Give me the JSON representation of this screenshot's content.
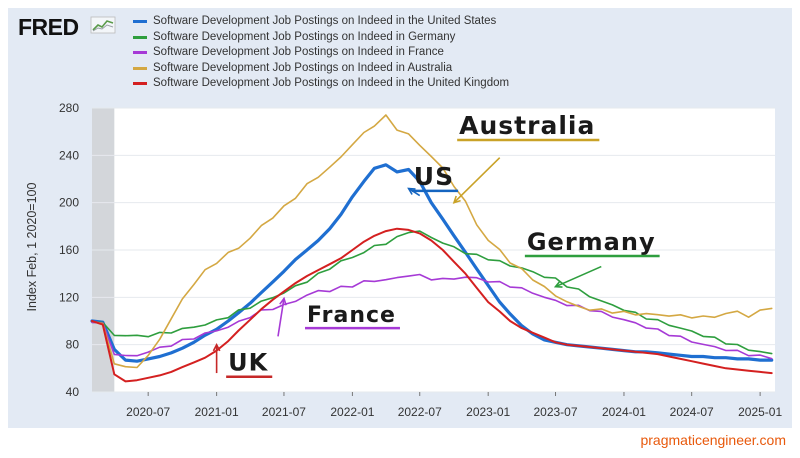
{
  "brand": {
    "logo_text": "FRED",
    "logo_icon": "fred-chart-icon"
  },
  "footer": {
    "source_text": "pragmaticengineer.com",
    "source_color": "#e8590c"
  },
  "colors": {
    "background_frame": "#e3eaf4",
    "plot_bg": "#ffffff",
    "recession_band": "#d3d6da",
    "annotation_united_states": "#1565c0",
    "annotation_australia": "#c9a227",
    "annotation_germany": "#2e9e3e",
    "annotation_france": "#a63ad6",
    "annotation_uk": "#c62828"
  },
  "annotations": [
    {
      "text": "Australia",
      "series": "Australia",
      "color": "#c9a227",
      "x": "2022-10-15",
      "y": 258
    },
    {
      "text": "US",
      "series": "United States",
      "color": "#1565c0",
      "x": "2022-06-15",
      "y": 215
    },
    {
      "text": "Germany",
      "series": "Germany",
      "color": "#2e9e3e",
      "x": "2023-04-15",
      "y": 160
    },
    {
      "text": "France",
      "series": "France",
      "color": "#a63ad6",
      "x": "2021-09-01",
      "y": 99
    },
    {
      "text": "UK",
      "series": "United Kingdom",
      "color": "#c62828",
      "x": "2021-02-01",
      "y": 58
    }
  ],
  "chart_data": {
    "type": "line",
    "title": "",
    "xlabel": "",
    "ylabel": "Index Feb, 1 2020=100",
    "ylim": [
      40,
      280
    ],
    "xlim": [
      "2020-02-01",
      "2025-02-10"
    ],
    "y_ticks": [
      40,
      80,
      120,
      160,
      200,
      240,
      280
    ],
    "x_ticks": [
      "2020-07",
      "2021-01",
      "2021-07",
      "2022-01",
      "2022-07",
      "2023-01",
      "2023-07",
      "2024-01",
      "2024-07",
      "2025-01"
    ],
    "grid": true,
    "legend": "top-left",
    "recession_band": {
      "start": "2020-02-01",
      "end": "2020-04-01"
    },
    "x": [
      "2020-02-01",
      "2020-03-01",
      "2020-04-01",
      "2020-05-01",
      "2020-06-01",
      "2020-07-01",
      "2020-08-01",
      "2020-09-01",
      "2020-10-01",
      "2020-11-01",
      "2020-12-01",
      "2021-01-01",
      "2021-02-01",
      "2021-03-01",
      "2021-04-01",
      "2021-05-01",
      "2021-06-01",
      "2021-07-01",
      "2021-08-01",
      "2021-09-01",
      "2021-10-01",
      "2021-11-01",
      "2021-12-01",
      "2022-01-01",
      "2022-02-01",
      "2022-03-01",
      "2022-04-01",
      "2022-05-01",
      "2022-06-01",
      "2022-07-01",
      "2022-08-01",
      "2022-09-01",
      "2022-10-01",
      "2022-11-01",
      "2022-12-01",
      "2023-01-01",
      "2023-02-01",
      "2023-03-01",
      "2023-04-01",
      "2023-05-01",
      "2023-06-01",
      "2023-07-01",
      "2023-08-01",
      "2023-09-01",
      "2023-10-01",
      "2023-11-01",
      "2023-12-01",
      "2024-01-01",
      "2024-02-01",
      "2024-03-01",
      "2024-04-01",
      "2024-05-01",
      "2024-06-01",
      "2024-07-01",
      "2024-08-01",
      "2024-09-01",
      "2024-10-01",
      "2024-11-01",
      "2024-12-01",
      "2025-01-01",
      "2025-02-01"
    ],
    "series": [
      {
        "name": "Software Development Job Postings on Indeed in the United States",
        "color": "#1f6fd1",
        "width": 3.2,
        "values": [
          100,
          99,
          76,
          67,
          66,
          68,
          70,
          73,
          77,
          82,
          88,
          93,
          100,
          107,
          115,
          124,
          133,
          142,
          152,
          160,
          168,
          178,
          190,
          205,
          218,
          229,
          232,
          226,
          228,
          218,
          200,
          186,
          172,
          158,
          144,
          130,
          116,
          106,
          96,
          89,
          84,
          82,
          80,
          79,
          78,
          77,
          76,
          75,
          74,
          74,
          73,
          72,
          71,
          70,
          70,
          69,
          69,
          68,
          68,
          67,
          67
        ]
      },
      {
        "name": "Software Development Job Postings on Indeed in Germany",
        "color": "#2e9e3e",
        "width": 1.6,
        "values": [
          100,
          98,
          88,
          88,
          87,
          88,
          89,
          91,
          93,
          95,
          97,
          100,
          104,
          108,
          112,
          116,
          120,
          124,
          129,
          134,
          139,
          145,
          150,
          154,
          158,
          163,
          166,
          170,
          176,
          175,
          171,
          166,
          162,
          158,
          155,
          153,
          150,
          147,
          145,
          141,
          138,
          135,
          130,
          126,
          121,
          117,
          113,
          110,
          106,
          103,
          100,
          97,
          94,
          91,
          88,
          85,
          82,
          79,
          76,
          74,
          72
        ]
      },
      {
        "name": "Software Development Job Postings on Indeed in France",
        "color": "#a63ad6",
        "width": 1.6,
        "values": [
          100,
          97,
          73,
          70,
          71,
          74,
          77,
          80,
          83,
          86,
          89,
          92,
          95,
          99,
          104,
          108,
          111,
          113,
          117,
          122,
          125,
          126,
          128,
          130,
          133,
          134,
          135,
          136,
          139,
          138,
          136,
          135,
          136,
          137,
          136,
          134,
          132,
          130,
          127,
          124,
          120,
          117,
          114,
          112,
          110,
          107,
          104,
          101,
          98,
          95,
          92,
          89,
          86,
          83,
          80,
          78,
          76,
          74,
          72,
          70,
          69
        ]
      },
      {
        "name": "Software Development Job Postings on Indeed in Australia",
        "color": "#d4a843",
        "width": 1.6,
        "values": [
          100,
          97,
          65,
          60,
          62,
          70,
          85,
          102,
          118,
          132,
          142,
          150,
          157,
          162,
          170,
          180,
          188,
          196,
          205,
          215,
          222,
          230,
          238,
          250,
          258,
          266,
          273,
          262,
          258,
          248,
          240,
          228,
          215,
          200,
          182,
          168,
          160,
          150,
          143,
          136,
          128,
          122,
          116,
          112,
          110,
          109,
          108,
          107,
          106,
          106,
          105,
          105,
          104,
          104,
          103,
          104,
          106,
          108,
          104,
          108,
          112
        ]
      },
      {
        "name": "Software Development Job Postings on Indeed in the United Kingdom",
        "color": "#d42020",
        "width": 2.0,
        "values": [
          100,
          97,
          55,
          49,
          50,
          52,
          54,
          57,
          61,
          65,
          69,
          75,
          83,
          92,
          101,
          110,
          118,
          125,
          132,
          138,
          143,
          148,
          153,
          160,
          167,
          172,
          176,
          178,
          177,
          174,
          168,
          160,
          150,
          140,
          128,
          116,
          108,
          100,
          94,
          90,
          86,
          82,
          80,
          79,
          78,
          77,
          76,
          75,
          74,
          73,
          72,
          70,
          68,
          66,
          64,
          62,
          60,
          59,
          58,
          57,
          56
        ]
      }
    ]
  }
}
